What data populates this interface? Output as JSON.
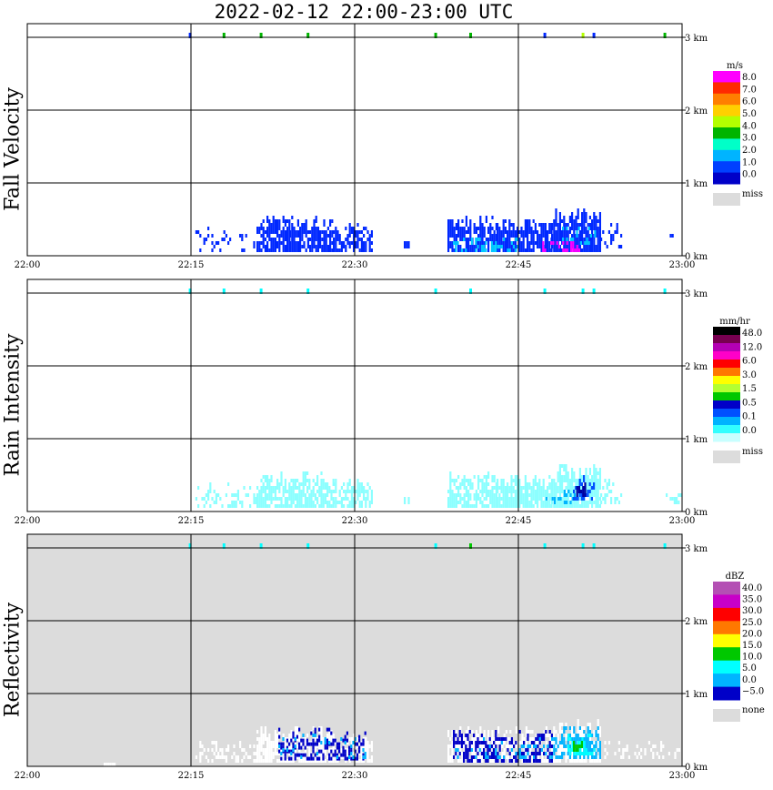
{
  "title": "2022-02-12   22:00-23:00 UTC",
  "chart_data": [
    {
      "type": "heatmap",
      "ylabel": "Fall Velocity",
      "background": "#ffffff",
      "x": {
        "ticks": [
          "22:00",
          "22:15",
          "22:30",
          "22:45",
          "23:00"
        ],
        "range_minutes": [
          0,
          60
        ]
      },
      "y": {
        "ticks": [
          "0 km",
          "1 km",
          "2 km",
          "3 km"
        ],
        "range_km": [
          0,
          3.15
        ]
      },
      "colorbar": {
        "unit": "m/s",
        "labels": [
          "8.0",
          "7.0",
          "6.0",
          "5.0",
          "4.0",
          "3.0",
          "2.0",
          "1.0",
          "0.0"
        ],
        "colors": [
          "#ff00ff",
          "#ff2a00",
          "#ff7f00",
          "#ffd000",
          "#b4ff00",
          "#00b400",
          "#00ffc8",
          "#00b4ff",
          "#0040ff",
          "#0000c8"
        ],
        "missing_label": "miss",
        "missing_color": "#dcdcdc"
      },
      "echoes": [
        {
          "t": [
            15.4,
            18.5
          ],
          "base_km": 0.05,
          "top_km": 0.4,
          "color": "#0028ff",
          "density": 0.25
        },
        {
          "t": [
            18.5,
            21.0
          ],
          "base_km": 0.05,
          "top_km": 0.35,
          "color": "#0028ff",
          "density": 0.2
        },
        {
          "t": [
            21.0,
            24.0
          ],
          "base_km": 0.05,
          "top_km": 0.55,
          "color": "#0028ff",
          "density": 0.8
        },
        {
          "t": [
            24.0,
            28.0
          ],
          "base_km": 0.05,
          "top_km": 0.52,
          "color": "#0028ff",
          "density": 0.8
        },
        {
          "t": [
            28.0,
            31.5
          ],
          "base_km": 0.05,
          "top_km": 0.45,
          "color": "#0028ff",
          "density": 0.7
        },
        {
          "t": [
            34.5,
            35.0
          ],
          "base_km": 0.1,
          "top_km": 0.2,
          "color": "#0028ff",
          "density": 0.6
        },
        {
          "t": [
            38.5,
            43.0
          ],
          "base_km": 0.05,
          "top_km": 0.55,
          "color": "#0028ff",
          "density": 0.7
        },
        {
          "t": [
            43.0,
            48.0
          ],
          "base_km": 0.05,
          "top_km": 0.5,
          "color": "#0028ff",
          "density": 0.8
        },
        {
          "t": [
            48.0,
            52.5
          ],
          "base_km": 0.05,
          "top_km": 0.65,
          "color": "#0028ff",
          "density": 0.85
        },
        {
          "t": [
            52.5,
            54.5
          ],
          "base_km": 0.1,
          "top_km": 0.45,
          "color": "#0028ff",
          "density": 0.25
        },
        {
          "t": [
            58.5,
            59.8
          ],
          "base_km": 0.2,
          "top_km": 0.3,
          "color": "#0028ff",
          "density": 0.2
        },
        {
          "t": [
            39.0,
            45.0
          ],
          "base_km": 0.05,
          "top_km": 0.25,
          "color": "#00c8ff",
          "density": 0.35
        },
        {
          "t": [
            47.0,
            50.5
          ],
          "base_km": 0.05,
          "top_km": 0.2,
          "color": "#ff00ff",
          "density": 0.35
        },
        {
          "t": [
            49.0,
            52.0
          ],
          "base_km": 0.15,
          "top_km": 0.4,
          "color": "#00c8ff",
          "density": 0.3
        }
      ],
      "top_speckles": [
        {
          "t": 14.8,
          "color": "#0028ff"
        },
        {
          "t": 17.9,
          "color": "#00b400"
        },
        {
          "t": 21.3,
          "color": "#00b400"
        },
        {
          "t": 25.6,
          "color": "#00b400"
        },
        {
          "t": 37.3,
          "color": "#00b400"
        },
        {
          "t": 40.5,
          "color": "#00b400"
        },
        {
          "t": 47.3,
          "color": "#0028ff"
        },
        {
          "t": 50.8,
          "color": "#b4ff00"
        },
        {
          "t": 51.8,
          "color": "#0028ff"
        },
        {
          "t": 58.3,
          "color": "#00b400"
        }
      ]
    },
    {
      "type": "heatmap",
      "ylabel": "Rain Intensity",
      "background": "#ffffff",
      "x": {
        "ticks": [
          "22:00",
          "22:15",
          "22:30",
          "22:45",
          "23:00"
        ],
        "range_minutes": [
          0,
          60
        ]
      },
      "y": {
        "ticks": [
          "0 km",
          "1 km",
          "2 km",
          "3 km"
        ],
        "range_km": [
          0,
          3.15
        ]
      },
      "colorbar": {
        "unit": "mm/hr",
        "labels": [
          "48.0",
          "12.0",
          "6.0",
          "3.0",
          "1.5",
          "0.5",
          "0.1",
          "0.0"
        ],
        "colors": [
          "#000000",
          "#780050",
          "#b400b4",
          "#ff00c8",
          "#ff0000",
          "#ff7800",
          "#ffff00",
          "#b4ff32",
          "#00c800",
          "#0000c8",
          "#0050ff",
          "#00b4ff",
          "#32ffff",
          "#c8ffff"
        ],
        "missing_label": "miss",
        "missing_color": "#dcdcdc"
      },
      "echoes": [
        {
          "t": [
            15.4,
            18.5
          ],
          "base_km": 0.05,
          "top_km": 0.4,
          "color": "#8cffff",
          "density": 0.3
        },
        {
          "t": [
            18.5,
            21.0
          ],
          "base_km": 0.05,
          "top_km": 0.35,
          "color": "#8cffff",
          "density": 0.3
        },
        {
          "t": [
            21.0,
            28.0
          ],
          "base_km": 0.05,
          "top_km": 0.55,
          "color": "#8cffff",
          "density": 0.8
        },
        {
          "t": [
            28.0,
            31.5
          ],
          "base_km": 0.05,
          "top_km": 0.45,
          "color": "#8cffff",
          "density": 0.7
        },
        {
          "t": [
            34.5,
            35.0
          ],
          "base_km": 0.1,
          "top_km": 0.2,
          "color": "#8cffff",
          "density": 0.6
        },
        {
          "t": [
            38.5,
            43.0
          ],
          "base_km": 0.05,
          "top_km": 0.55,
          "color": "#8cffff",
          "density": 0.7
        },
        {
          "t": [
            43.0,
            48.0
          ],
          "base_km": 0.05,
          "top_km": 0.5,
          "color": "#8cffff",
          "density": 0.85
        },
        {
          "t": [
            48.0,
            52.5
          ],
          "base_km": 0.05,
          "top_km": 0.65,
          "color": "#8cffff",
          "density": 0.85
        },
        {
          "t": [
            52.5,
            54.5
          ],
          "base_km": 0.1,
          "top_km": 0.45,
          "color": "#8cffff",
          "density": 0.3
        },
        {
          "t": [
            58.5,
            59.8
          ],
          "base_km": 0.1,
          "top_km": 0.3,
          "color": "#8cffff",
          "density": 0.3
        },
        {
          "t": [
            47.5,
            50.5
          ],
          "base_km": 0.1,
          "top_km": 0.3,
          "color": "#00b4ff",
          "density": 0.3
        },
        {
          "t": [
            50.0,
            52.0
          ],
          "base_km": 0.15,
          "top_km": 0.55,
          "color": "#0050ff",
          "density": 0.45
        },
        {
          "t": [
            50.3,
            51.2
          ],
          "base_km": 0.2,
          "top_km": 0.4,
          "color": "#0000a0",
          "density": 0.8
        }
      ],
      "top_speckles": [
        {
          "t": 14.8,
          "color": "#00ffff"
        },
        {
          "t": 17.9,
          "color": "#00ffff"
        },
        {
          "t": 21.3,
          "color": "#00ffff"
        },
        {
          "t": 25.6,
          "color": "#00ffff"
        },
        {
          "t": 37.3,
          "color": "#00ffff"
        },
        {
          "t": 40.5,
          "color": "#00ffff"
        },
        {
          "t": 47.3,
          "color": "#00ffff"
        },
        {
          "t": 50.8,
          "color": "#00ffff"
        },
        {
          "t": 51.8,
          "color": "#00ffff"
        },
        {
          "t": 58.3,
          "color": "#00ffff"
        }
      ]
    },
    {
      "type": "heatmap",
      "ylabel": "Reflectivity",
      "background": "#dcdcdc",
      "x": {
        "ticks": [
          "22:00",
          "22:15",
          "22:30",
          "22:45",
          "23:00"
        ],
        "range_minutes": [
          0,
          60
        ]
      },
      "y": {
        "ticks": [
          "0 km",
          "1 km",
          "2 km",
          "3 km"
        ],
        "range_km": [
          0,
          3.15
        ]
      },
      "colorbar": {
        "unit": "dBZ",
        "labels": [
          "40.0",
          "35.0",
          "30.0",
          "25.0",
          "20.0",
          "15.0",
          "10.0",
          "5.0",
          "0.0",
          "−5.0"
        ],
        "colors": [
          "#b450b4",
          "#c800c8",
          "#ff0000",
          "#ff7800",
          "#ffff00",
          "#00c800",
          "#00ffff",
          "#00b4ff",
          "#0000c8"
        ],
        "missing_label": "none",
        "missing_color": "#dcdcdc"
      },
      "echoes": [
        {
          "t": [
            15.4,
            18.5
          ],
          "base_km": 0.05,
          "top_km": 0.4,
          "color": "#ffffff",
          "density": 0.35
        },
        {
          "t": [
            18.5,
            21.0
          ],
          "base_km": 0.05,
          "top_km": 0.35,
          "color": "#ffffff",
          "density": 0.35
        },
        {
          "t": [
            21.0,
            28.0
          ],
          "base_km": 0.05,
          "top_km": 0.55,
          "color": "#ffffff",
          "density": 0.75
        },
        {
          "t": [
            28.0,
            31.5
          ],
          "base_km": 0.05,
          "top_km": 0.45,
          "color": "#ffffff",
          "density": 0.65
        },
        {
          "t": [
            38.5,
            48.0
          ],
          "base_km": 0.05,
          "top_km": 0.55,
          "color": "#ffffff",
          "density": 0.7
        },
        {
          "t": [
            48.0,
            52.5
          ],
          "base_km": 0.05,
          "top_km": 0.65,
          "color": "#ffffff",
          "density": 0.8
        },
        {
          "t": [
            52.5,
            59.8
          ],
          "base_km": 0.1,
          "top_km": 0.35,
          "color": "#ffffff",
          "density": 0.25
        },
        {
          "t": [
            23.0,
            31.0
          ],
          "base_km": 0.08,
          "top_km": 0.5,
          "color": "#0000c8",
          "density": 0.4
        },
        {
          "t": [
            23.0,
            31.0
          ],
          "base_km": 0.1,
          "top_km": 0.45,
          "color": "#00b4ff",
          "density": 0.15
        },
        {
          "t": [
            39.0,
            48.0
          ],
          "base_km": 0.05,
          "top_km": 0.5,
          "color": "#0000c8",
          "density": 0.4
        },
        {
          "t": [
            39.0,
            48.0
          ],
          "base_km": 0.1,
          "top_km": 0.4,
          "color": "#00b4ff",
          "density": 0.15
        },
        {
          "t": [
            48.0,
            52.5
          ],
          "base_km": 0.1,
          "top_km": 0.6,
          "color": "#00b4ff",
          "density": 0.5
        },
        {
          "t": [
            49.5,
            52.0
          ],
          "base_km": 0.15,
          "top_km": 0.45,
          "color": "#00ffff",
          "density": 0.6
        },
        {
          "t": [
            50.0,
            51.0
          ],
          "base_km": 0.2,
          "top_km": 0.35,
          "color": "#00c800",
          "density": 0.8
        },
        {
          "t": [
            7.0,
            8.0
          ],
          "base_km": 0.0,
          "top_km": 0.05,
          "color": "#ffffff",
          "density": 1.0
        }
      ],
      "top_speckles": [
        {
          "t": 14.8,
          "color": "#00ffff"
        },
        {
          "t": 17.9,
          "color": "#00ffff"
        },
        {
          "t": 21.3,
          "color": "#00ffff"
        },
        {
          "t": 25.6,
          "color": "#00ffff"
        },
        {
          "t": 37.3,
          "color": "#00ffff"
        },
        {
          "t": 40.5,
          "color": "#00c800"
        },
        {
          "t": 47.3,
          "color": "#00ffff"
        },
        {
          "t": 50.8,
          "color": "#00ffff"
        },
        {
          "t": 51.8,
          "color": "#00ffff"
        },
        {
          "t": 58.3,
          "color": "#00ffff"
        }
      ]
    }
  ]
}
